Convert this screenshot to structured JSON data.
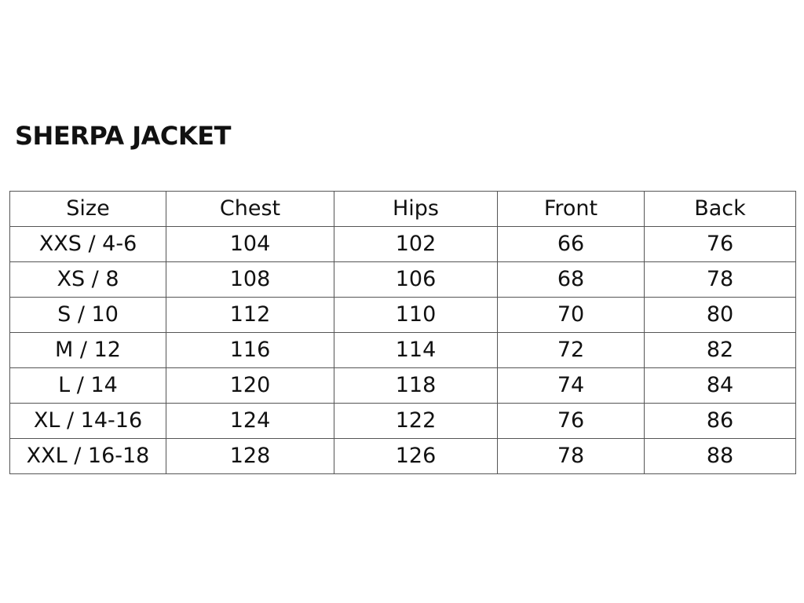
{
  "title": "SHERPA JACKET",
  "table": {
    "headers": [
      "Size",
      "Chest",
      "Hips",
      "Front",
      "Back"
    ],
    "rows": [
      [
        "XXS / 4-6",
        "104",
        "102",
        "66",
        "76"
      ],
      [
        "XS / 8",
        "108",
        "106",
        "68",
        "78"
      ],
      [
        "S / 10",
        "112",
        "110",
        "70",
        "80"
      ],
      [
        "M / 12",
        "116",
        "114",
        "72",
        "82"
      ],
      [
        "L / 14",
        "120",
        "118",
        "74",
        "84"
      ],
      [
        "XL / 14-16",
        "124",
        "122",
        "76",
        "86"
      ],
      [
        "XXL / 16-18",
        "128",
        "126",
        "78",
        "88"
      ]
    ]
  }
}
